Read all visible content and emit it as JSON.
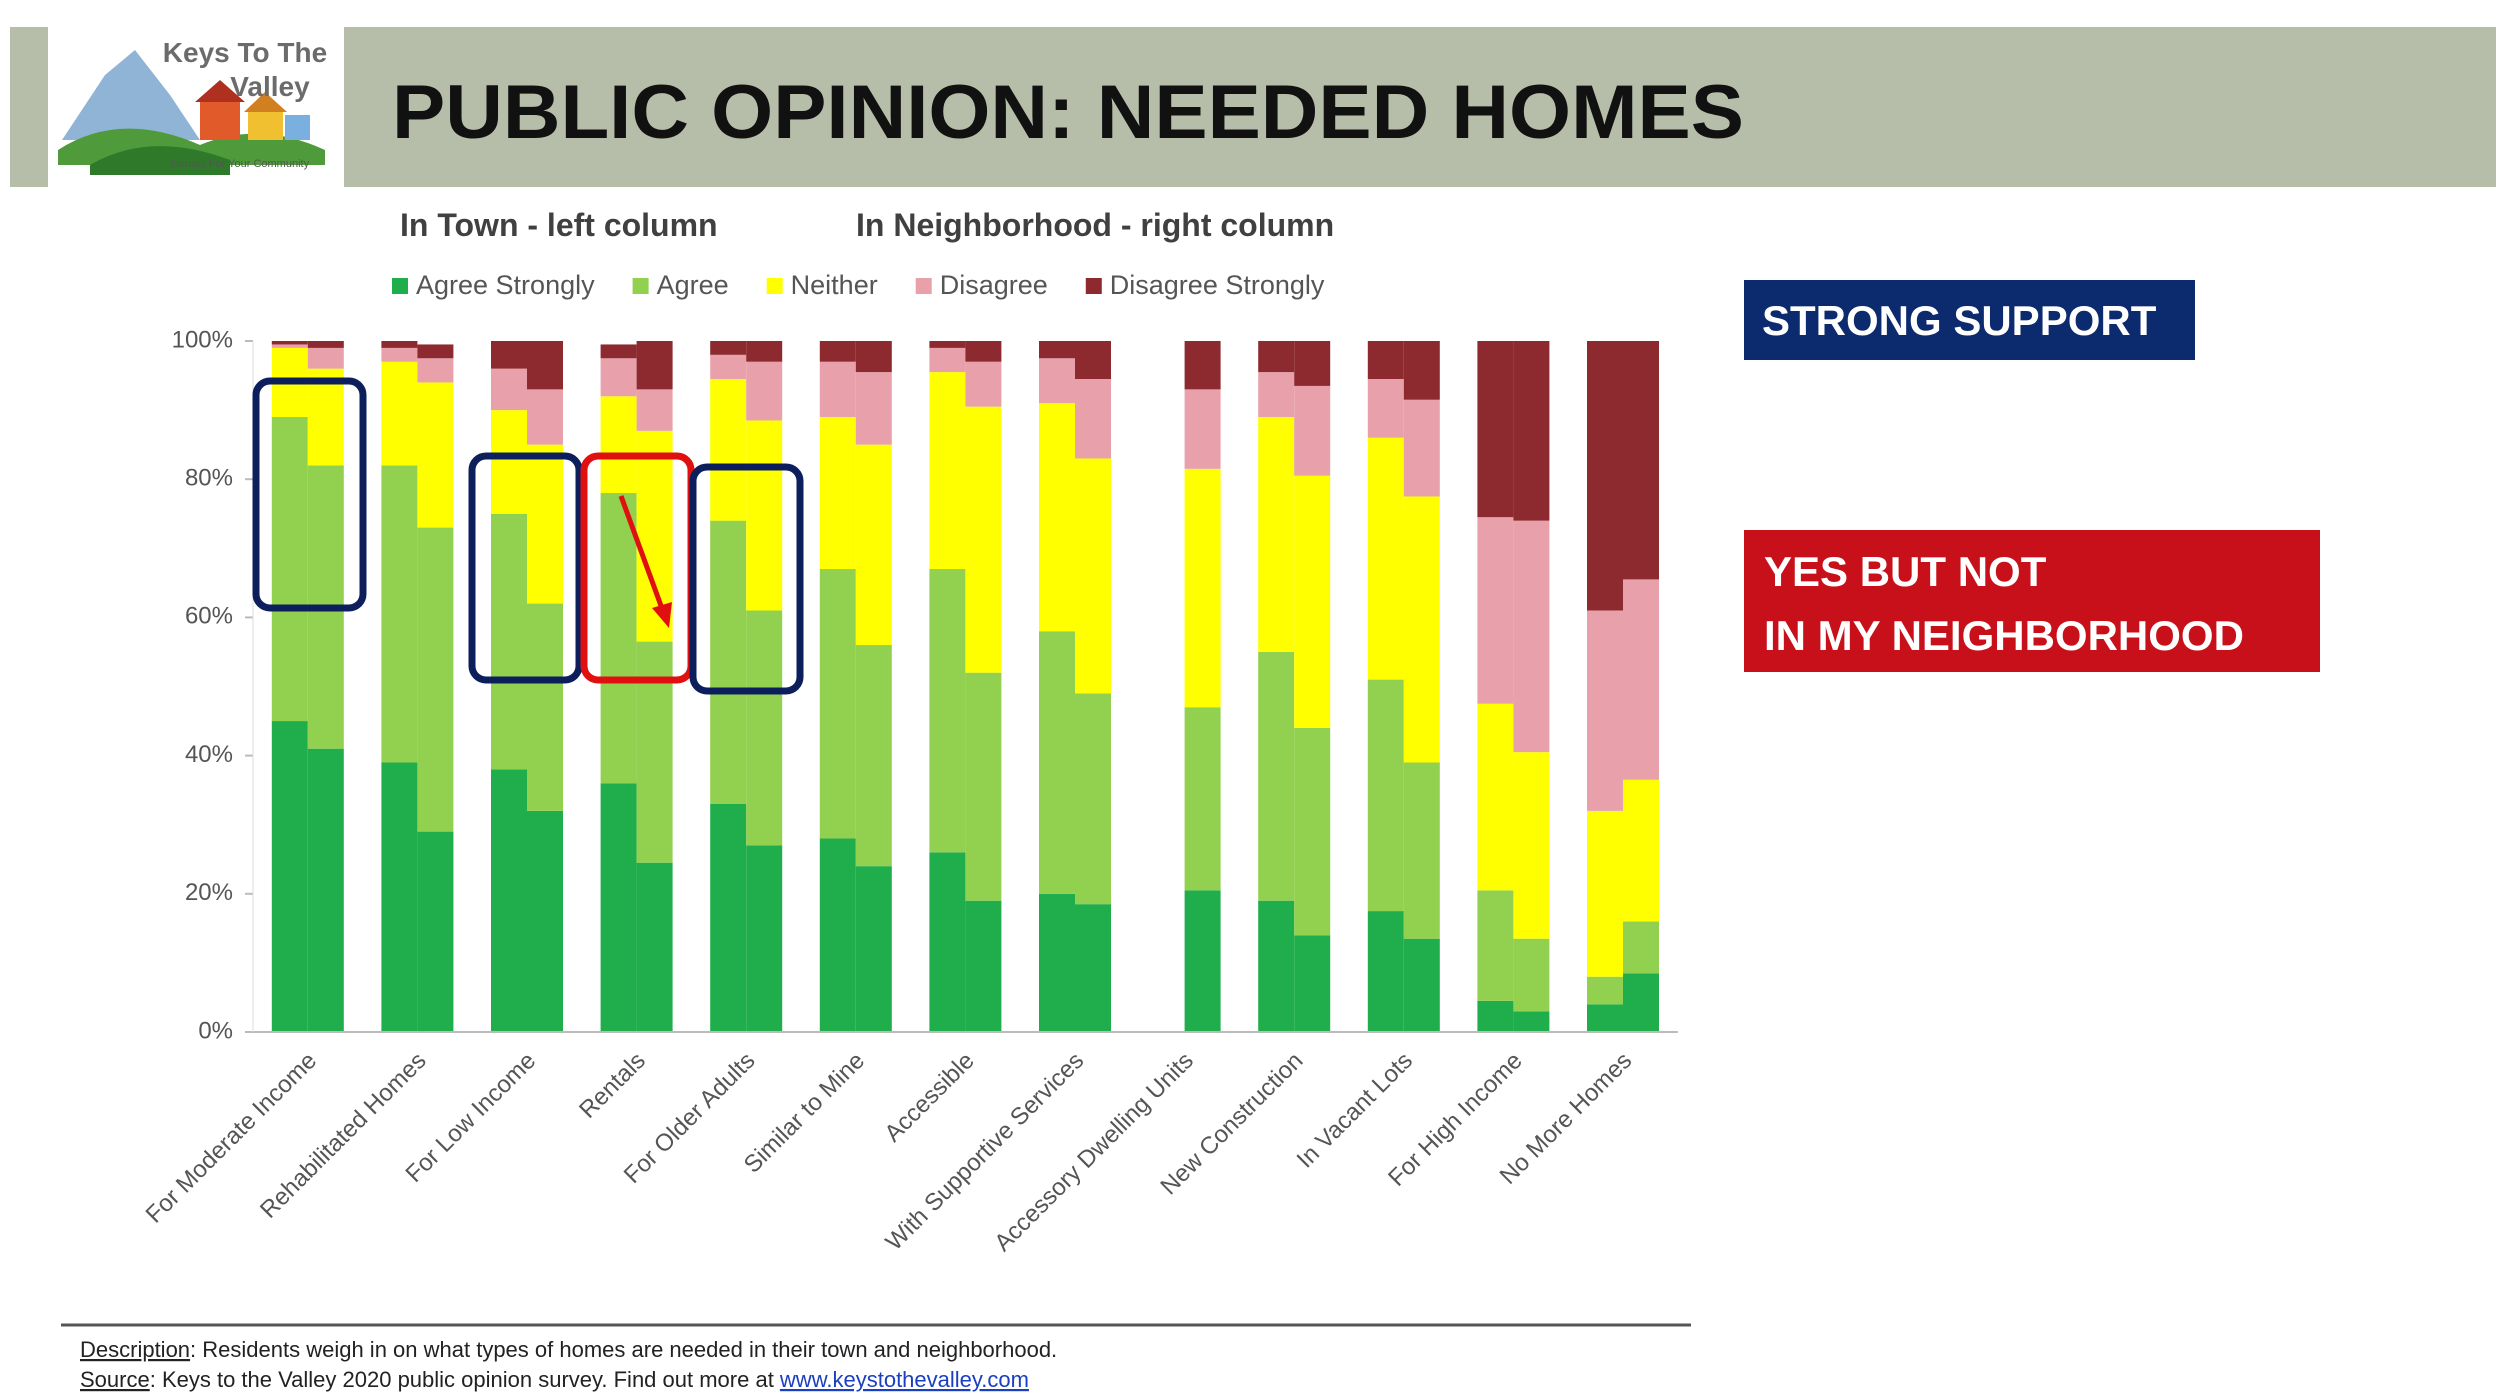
{
  "logo": {
    "line1": "Keys To The",
    "line2": "Valley",
    "tagline": "Homes For Your Community"
  },
  "chart_data": {
    "type": "bar",
    "stacked": true,
    "title": "PUBLIC OPINION: NEEDED HOMES",
    "subtitle_left": "In Town - left column",
    "subtitle_right": "In Neighborhood - right column",
    "categories": [
      "For Moderate Income",
      "Rehabilitated Homes",
      "For Low Income",
      "Rentals",
      "For Older Adults",
      "Similar to Mine",
      "Accessible",
      "With Supportive Services",
      "Accessory Dwelling Units",
      "New Construction",
      "In Vacant Lots",
      "For High Income",
      "No More Homes"
    ],
    "series": [
      {
        "name": "Agree Strongly",
        "color": "#1fae4b",
        "values": [
          [
            45,
            41
          ],
          [
            39,
            29
          ],
          [
            38,
            32
          ],
          [
            36,
            24.5
          ],
          [
            33,
            27
          ],
          [
            28,
            24
          ],
          [
            26,
            19
          ],
          [
            20,
            18.5
          ],
          [
            null,
            20.5
          ],
          [
            19,
            14
          ],
          [
            17.5,
            13.5
          ],
          [
            4.5,
            3
          ],
          [
            4,
            8.5
          ]
        ]
      },
      {
        "name": "Agree",
        "color": "#92d050",
        "values": [
          [
            44,
            41
          ],
          [
            43,
            44
          ],
          [
            37,
            30
          ],
          [
            42,
            32
          ],
          [
            41,
            34
          ],
          [
            39,
            32
          ],
          [
            41,
            33
          ],
          [
            38,
            30.5
          ],
          [
            null,
            26.5
          ],
          [
            36,
            30
          ],
          [
            33.5,
            25.5
          ],
          [
            16,
            10.5
          ],
          [
            4,
            7.5
          ]
        ]
      },
      {
        "name": "Neither",
        "color": "#ffff00",
        "values": [
          [
            10,
            14
          ],
          [
            15,
            21
          ],
          [
            15,
            23
          ],
          [
            14,
            30.5
          ],
          [
            20.5,
            27.5
          ],
          [
            22,
            29
          ],
          [
            28.5,
            38.5
          ],
          [
            33,
            34
          ],
          [
            null,
            34.5
          ],
          [
            34,
            36.5
          ],
          [
            35,
            38.5
          ],
          [
            27,
            27
          ],
          [
            24,
            20.5
          ]
        ]
      },
      {
        "name": "Disagree",
        "color": "#e8a1aa",
        "values": [
          [
            0.5,
            3
          ],
          [
            2,
            3.5
          ],
          [
            6,
            8
          ],
          [
            5.5,
            6
          ],
          [
            3.5,
            8.5
          ],
          [
            8,
            10.5
          ],
          [
            3.5,
            6.5
          ],
          [
            6.5,
            11.5
          ],
          [
            null,
            11.5
          ],
          [
            6.5,
            13
          ],
          [
            8.5,
            14
          ],
          [
            27,
            33.5
          ],
          [
            29,
            29
          ]
        ]
      },
      {
        "name": "Disagree Strongly",
        "color": "#8c2a30",
        "values": [
          [
            0.5,
            1
          ],
          [
            1,
            2
          ],
          [
            4,
            7
          ],
          [
            2,
            7
          ],
          [
            2,
            3
          ],
          [
            3,
            4.5
          ],
          [
            1,
            3
          ],
          [
            2.5,
            5.5
          ],
          [
            null,
            7
          ],
          [
            4.5,
            6.5
          ],
          [
            5.5,
            8.5
          ],
          [
            25.5,
            26
          ],
          [
            39,
            34.5
          ]
        ]
      }
    ],
    "ylim": [
      0,
      100
    ],
    "yticks": [
      {
        "value": 0,
        "label": "0%"
      },
      {
        "value": 20,
        "label": "20%"
      },
      {
        "value": 40,
        "label": "40%"
      },
      {
        "value": 60,
        "label": "60%"
      },
      {
        "value": 80,
        "label": "80%"
      },
      {
        "value": 100,
        "label": "100%"
      }
    ],
    "grid": false,
    "callouts": {
      "strong_support": "STRONG SUPPORT",
      "nimby": [
        "YES BUT NOT",
        "IN MY NEIGHBORHOOD"
      ]
    }
  },
  "footer": {
    "description_label": "Description",
    "description": ": Residents weigh in on what types of homes are needed in their town and neighborhood.",
    "source_label": "Source",
    "source": ": Keys to the Valley 2020 public opinion survey. Find out more at ",
    "link": "www.keystothevalley.com"
  }
}
